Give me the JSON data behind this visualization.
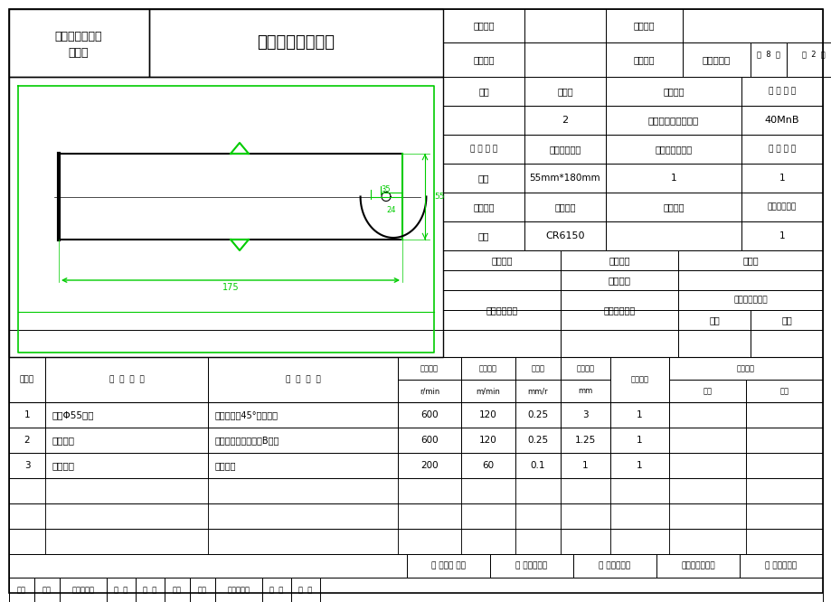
{
  "title": "机械加工工序卡片",
  "school_line1": "河南工业职业技",
  "school_line2": "术学院",
  "product_type_label": "产品型号",
  "product_name_label": "产品名称",
  "part_drawing_label": "零件图号",
  "part_name_label": "零件名称",
  "part_name_value": "花键传动轴",
  "total_pages": "共  8  页",
  "current_page": "第  2  页",
  "workshop_label": "车间",
  "process_no_label": "工序号",
  "process_name_label": "工序名称",
  "material_label": "材 料 牌 号",
  "process_no_value": "2",
  "process_name_value": "粗车端面，钻中心孔",
  "material_value": "40MnB",
  "blank_type_label": "毛 坯 种 类",
  "blank_size_label": "毛坯外形尺寸",
  "blank_qty_label": "每毛坯可制件数",
  "parts_per_unit_label": "每 台 件 数",
  "blank_type_value": "锻件",
  "blank_size_value": "55mm*180mm",
  "blank_qty_value": "1",
  "parts_per_unit_value": "1",
  "equipment_name_label": "设备名称",
  "equipment_model_label": "设备型号",
  "equipment_no_label": "设备编号",
  "simultaneous_label": "同时加工件数",
  "equipment_name_value": "车床",
  "equipment_model_value": "CR6150",
  "simultaneous_value": "1",
  "fixture_no_label": "夹具编号",
  "fixture_name_label": "夹具名称",
  "coolant_label": "切削液",
  "fixture_name_value": "三爪卡盘",
  "tool_no_label": "工位器具编号",
  "tool_name_label": "工位器具名称",
  "process_time_label": "工序工时（分）",
  "setup_time_label": "准终",
  "unit_time_label": "单件",
  "step_no_label": "工步号",
  "step_content_label": "工  步  内  容",
  "process_equipment_label": "工  艺  装  备",
  "spindle_speed_label1": "主轴转速",
  "spindle_speed_label2": "r/min",
  "cutting_speed_label1": "切削速度",
  "cutting_speed_label2": "m/min",
  "feed_label1": "进给量",
  "feed_label2": "mm/r",
  "depth_label1": "切削深度",
  "depth_label2": "mm",
  "feed_times_label": "进给次数",
  "step_time_label": "工步工时",
  "machine_time_label": "机动",
  "aux_time_label": "辅助",
  "steps": [
    {
      "no": "1",
      "content": "粗车Φ55端面",
      "equipment": "通用夹具，45°端面车刀",
      "spindle": "600",
      "cutting": "120",
      "feed": "0.25",
      "depth": "3",
      "feed_times": "1",
      "machine": "",
      "aux": ""
    },
    {
      "no": "2",
      "content": "钻中心孔",
      "equipment": "通用夹具，中心钻（B型）",
      "spindle": "600",
      "cutting": "120",
      "feed": "0.25",
      "depth": "1.25",
      "feed_times": "1",
      "machine": "",
      "aux": ""
    },
    {
      "no": "3",
      "content": "铰中心孔",
      "equipment": "通用夹具",
      "spindle": "200",
      "cutting": "60",
      "feed": "0.1",
      "depth": "1",
      "feed_times": "1",
      "machine": "",
      "aux": ""
    }
  ],
  "sign_labels": [
    "标记",
    "处数",
    "更改文件号",
    "签  字",
    "日  期",
    "标记",
    "处数",
    "更改文件号",
    "签  字",
    "日  期"
  ],
  "sign_widths": [
    28,
    28,
    52,
    32,
    32,
    28,
    28,
    52,
    32,
    32
  ],
  "approval_labels": [
    "设 计（日 期）",
    "校 对（日期）",
    "审 核（日期）",
    "标准化（日期）",
    "会 签（日期）"
  ],
  "bg_color": "#ffffff",
  "line_color": "#000000",
  "green_color": "#00cc00"
}
